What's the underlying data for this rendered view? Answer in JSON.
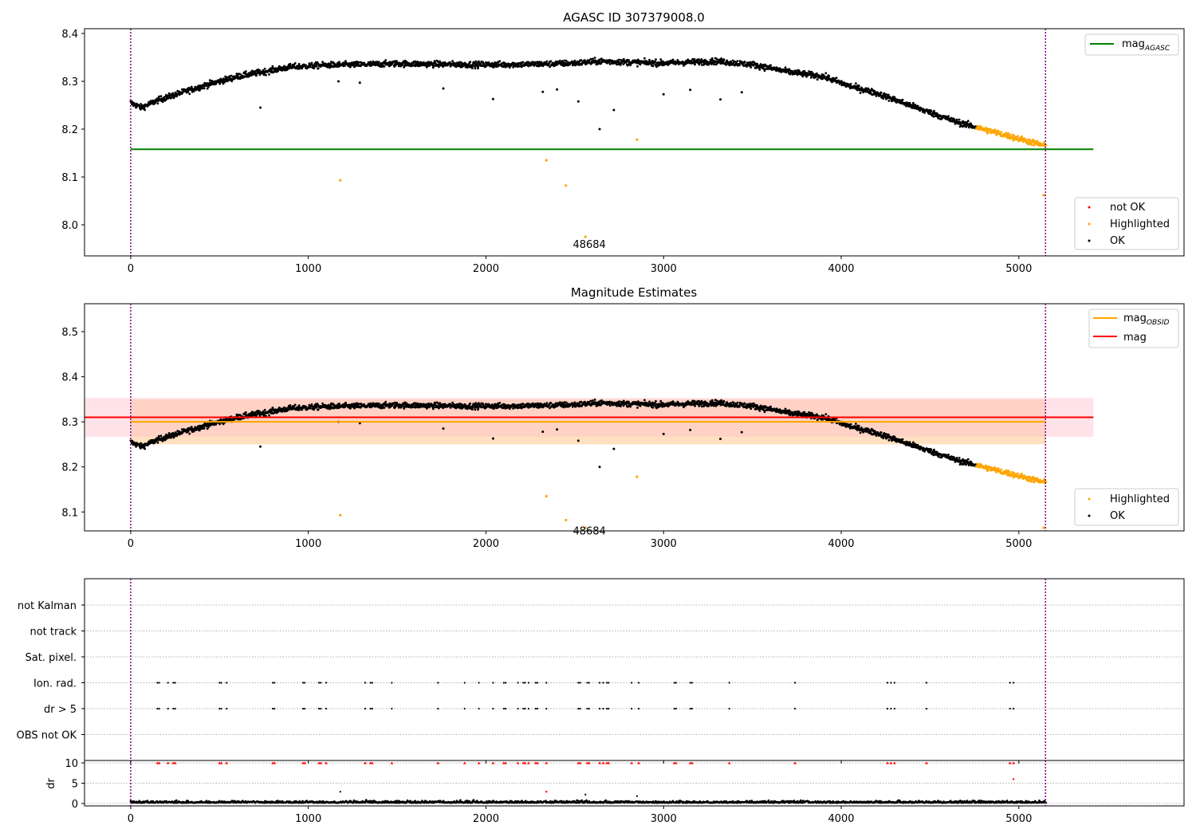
{
  "colors": {
    "ok": "#000000",
    "highlighted": "#ffa500",
    "not_ok": "#ff0000",
    "agasc": "#008000",
    "obsid": "#ffa500",
    "mag": "#ff0000",
    "vline": "#800080",
    "band_mag": "#ffc0cb",
    "band_obsid": "#ffd8b0",
    "grid": "#b0b0b0"
  },
  "chart_data": [
    {
      "type": "scatter",
      "title": "AGASC ID 307379008.0",
      "xlim": [
        -260,
        5930
      ],
      "ylim": [
        7.935,
        8.41
      ],
      "xticks": [
        0,
        1000,
        2000,
        3000,
        4000,
        5000
      ],
      "yticks": [
        8.0,
        8.1,
        8.2,
        8.3,
        8.4
      ],
      "ytick_labels": [
        "8.0",
        "8.1",
        "8.2",
        "8.3",
        "8.4"
      ],
      "vlines": [
        0,
        5150
      ],
      "hlines": [
        {
          "name": "mag",
          "subscript": "AGASC",
          "y": 8.158,
          "x": [
            0,
            5420
          ]
        }
      ],
      "legend_lines": {
        "placement": "top-right",
        "entries": [
          {
            "label": "mag",
            "subscript": "AGASC"
          }
        ]
      },
      "legend_points": {
        "placement": "bottom-right",
        "entries": [
          "not OK",
          "Highlighted",
          "OK"
        ]
      },
      "annotation": {
        "text": "48684",
        "x": 2555,
        "y": 7.975
      },
      "trend": [
        [
          0,
          8.255
        ],
        [
          60,
          8.245
        ],
        [
          150,
          8.26
        ],
        [
          300,
          8.278
        ],
        [
          450,
          8.295
        ],
        [
          600,
          8.31
        ],
        [
          750,
          8.32
        ],
        [
          900,
          8.33
        ],
        [
          1100,
          8.334
        ],
        [
          1300,
          8.335
        ],
        [
          1500,
          8.337
        ],
        [
          1700,
          8.336
        ],
        [
          1900,
          8.335
        ],
        [
          2100,
          8.335
        ],
        [
          2300,
          8.336
        ],
        [
          2500,
          8.338
        ],
        [
          2650,
          8.342
        ],
        [
          2800,
          8.34
        ],
        [
          3000,
          8.338
        ],
        [
          3150,
          8.34
        ],
        [
          3300,
          8.342
        ],
        [
          3500,
          8.335
        ],
        [
          3700,
          8.32
        ],
        [
          3900,
          8.31
        ],
        [
          4050,
          8.29
        ],
        [
          4200,
          8.275
        ],
        [
          4350,
          8.255
        ],
        [
          4500,
          8.235
        ],
        [
          4650,
          8.215
        ],
        [
          4800,
          8.2
        ],
        [
          4950,
          8.185
        ],
        [
          5100,
          8.17
        ],
        [
          5150,
          8.165
        ]
      ],
      "outliers_ok": [
        [
          730,
          8.245
        ],
        [
          1170,
          8.3
        ],
        [
          1290,
          8.297
        ],
        [
          1760,
          8.285
        ],
        [
          2040,
          8.263
        ],
        [
          2320,
          8.278
        ],
        [
          2400,
          8.283
        ],
        [
          2520,
          8.258
        ],
        [
          2640,
          8.2
        ],
        [
          2720,
          8.24
        ],
        [
          3000,
          8.273
        ],
        [
          3150,
          8.282
        ],
        [
          3320,
          8.262
        ],
        [
          3440,
          8.277
        ]
      ],
      "outliers_highlighted": [
        [
          1180,
          8.093
        ],
        [
          2340,
          8.135
        ],
        [
          2450,
          8.082
        ],
        [
          2560,
          7.975
        ],
        [
          2850,
          8.178
        ],
        [
          5140,
          8.062
        ]
      ]
    },
    {
      "type": "scatter",
      "title": "Magnitude Estimates",
      "xlim": [
        -260,
        5930
      ],
      "ylim": [
        8.058,
        8.562
      ],
      "xticks": [
        0,
        1000,
        2000,
        3000,
        4000,
        5000
      ],
      "yticks": [
        8.1,
        8.2,
        8.3,
        8.4,
        8.5
      ],
      "ytick_labels": [
        "8.1",
        "8.2",
        "8.3",
        "8.4",
        "8.5"
      ],
      "vlines": [
        0,
        5150
      ],
      "hlines": [
        {
          "name": "mag",
          "subscript": "OBSID",
          "y": 8.3,
          "x": [
            0,
            5150
          ]
        },
        {
          "name": "mag",
          "subscript": "",
          "y": 8.31,
          "x": [
            -260,
            5420
          ]
        }
      ],
      "bands": [
        {
          "y": [
            8.25,
            8.35
          ],
          "x": [
            0,
            5150
          ]
        },
        {
          "y": [
            8.267,
            8.353
          ],
          "x": [
            -260,
            5420
          ]
        }
      ],
      "legend_lines": {
        "placement": "top-right",
        "entries": [
          {
            "label": "mag",
            "subscript": "OBSID"
          },
          {
            "label": "mag",
            "subscript": ""
          }
        ]
      },
      "legend_points": {
        "placement": "bottom-right",
        "entries": [
          "Highlighted",
          "OK"
        ]
      },
      "annotation": {
        "text": "48684",
        "x": 2555,
        "y": 8.075
      },
      "outliers_ok": [
        [
          730,
          8.245
        ],
        [
          1170,
          8.3
        ],
        [
          1290,
          8.297
        ],
        [
          1760,
          8.285
        ],
        [
          2040,
          8.263
        ],
        [
          2320,
          8.278
        ],
        [
          2400,
          8.283
        ],
        [
          2520,
          8.258
        ],
        [
          2640,
          8.2
        ],
        [
          2720,
          8.24
        ],
        [
          3000,
          8.273
        ],
        [
          3150,
          8.282
        ],
        [
          3320,
          8.262
        ],
        [
          3440,
          8.277
        ]
      ],
      "outliers_highlighted": [
        [
          1180,
          8.093
        ],
        [
          2340,
          8.135
        ],
        [
          2450,
          8.082
        ],
        [
          2560,
          8.065
        ],
        [
          2850,
          8.178
        ],
        [
          5140,
          8.065
        ]
      ]
    },
    {
      "type": "scatter",
      "title": "",
      "xlim": [
        -260,
        5930
      ],
      "xticks": [
        0,
        1000,
        2000,
        3000,
        4000,
        5000
      ],
      "flag_categories": [
        "not Kalman",
        "not track",
        "Sat. pixel.",
        "Ion. rad.",
        "dr > 5",
        "OBS not OK"
      ],
      "flag_times": [
        150,
        160,
        210,
        240,
        250,
        500,
        510,
        540,
        800,
        810,
        970,
        980,
        1060,
        1070,
        1100,
        1320,
        1350,
        1360,
        1470,
        1730,
        1880,
        1960,
        2040,
        2100,
        2110,
        2180,
        2210,
        2220,
        2240,
        2280,
        2290,
        2340,
        2520,
        2530,
        2570,
        2580,
        2640,
        2660,
        2680,
        2690,
        2820,
        2860,
        3060,
        3070,
        3150,
        3160,
        3370,
        3740,
        4260,
        4280,
        4300,
        4480,
        4950,
        4970
      ],
      "vlines": [
        0,
        5150
      ]
    },
    {
      "type": "scatter",
      "title": "",
      "ylabel": "dr",
      "xlim": [
        -260,
        5930
      ],
      "ylim": [
        -0.6,
        10.6
      ],
      "xticks": [
        0,
        1000,
        2000,
        3000,
        4000,
        5000
      ],
      "yticks": [
        0,
        5,
        10
      ],
      "ytick_labels": [
        "0",
        "5",
        "10"
      ],
      "vlines": [
        0,
        5150
      ],
      "dr_capped": 10,
      "dr_outliers_ok": [
        [
          1180,
          2.9
        ],
        [
          2560,
          2.2
        ],
        [
          2850,
          1.8
        ]
      ],
      "dr_outliers_not_ok": [
        [
          2340,
          2.9
        ],
        [
          4970,
          6.0
        ]
      ]
    }
  ]
}
